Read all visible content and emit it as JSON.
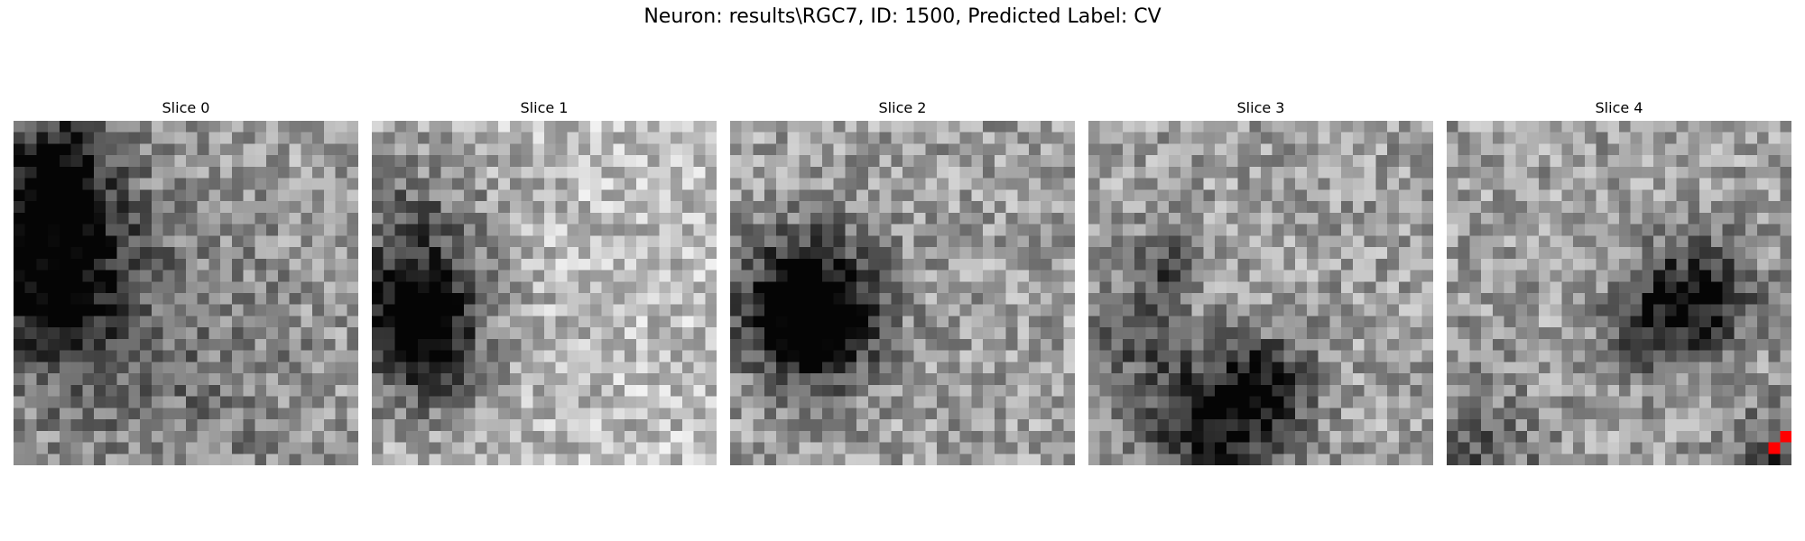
{
  "figure": {
    "title": "Neuron: results\\RGC7, ID: 1500, Predicted Label: CV"
  },
  "slices": [
    {
      "title": "Slice 0",
      "dark_spots": [
        [
          2,
          6,
          3.2,
          1.2
        ],
        [
          2,
          2,
          2.0,
          0.9
        ],
        [
          2,
          11,
          2.5,
          0.9
        ],
        [
          8,
          14,
          6,
          0.35
        ]
      ]
    },
    {
      "title": "Slice 1",
      "dark_spots": [
        [
          2,
          11,
          2.6,
          1.2
        ],
        [
          2,
          6,
          3.5,
          0.7
        ],
        [
          3,
          14,
          3,
          0.6
        ]
      ],
      "light_bias": 0.12
    },
    {
      "title": "Slice 2",
      "dark_spots": [
        [
          4,
          10,
          2.8,
          1.3
        ],
        [
          5,
          12,
          2.2,
          0.9
        ]
      ]
    },
    {
      "title": "Slice 3",
      "dark_spots": [
        [
          7,
          17,
          2.8,
          1.1
        ],
        [
          10,
          15,
          1.8,
          0.8
        ],
        [
          2,
          12,
          2.0,
          0.6
        ],
        [
          4,
          8,
          1.3,
          0.6
        ]
      ]
    },
    {
      "title": "Slice 4",
      "dark_spots": [
        [
          14,
          10,
          2.4,
          1.1
        ],
        [
          11,
          12,
          1.8,
          0.6
        ],
        [
          19,
          20,
          2.2,
          0.9
        ],
        [
          1,
          19,
          3,
          0.5
        ]
      ],
      "marker": "red-slash"
    }
  ],
  "colors": {
    "marker": "#ff0000"
  }
}
